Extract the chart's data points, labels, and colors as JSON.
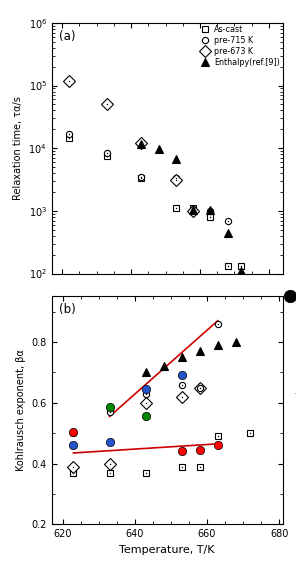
{
  "panel_a": {
    "ascast_T": [
      622,
      633,
      643,
      653,
      658,
      663,
      668,
      672
    ],
    "ascast_tau": [
      14500.0,
      7500.0,
      3400.0,
      1100.0,
      1100.0,
      800,
      130,
      130
    ],
    "pre715_T": [
      622,
      633,
      643,
      653,
      658,
      663,
      668
    ],
    "pre715_tau": [
      17000.0,
      8500.0,
      3500.0,
      3300.0,
      1000.0,
      1000.0,
      700
    ],
    "pre673_T": [
      622,
      633,
      643,
      653,
      658
    ],
    "pre673_tau": [
      120000.0,
      50000.0,
      12000.0,
      3100.0,
      1000.0
    ],
    "enthalpy_T": [
      643,
      648,
      653,
      658,
      663,
      668,
      672
    ],
    "enthalpy_tau": [
      11500.0,
      9800.0,
      6800.0,
      1050.0,
      1050.0,
      450,
      110
    ]
  },
  "panel_b": {
    "ascast_T": [
      623,
      633,
      643,
      653,
      658,
      663,
      672
    ],
    "ascast_beta": [
      0.37,
      0.37,
      0.37,
      0.39,
      0.39,
      0.49,
      0.5
    ],
    "pre715_T": [
      623,
      633,
      643,
      653,
      658,
      663
    ],
    "pre715_beta": [
      0.5,
      0.57,
      0.63,
      0.66,
      0.65,
      0.86
    ],
    "pre673_T": [
      623,
      633,
      643,
      653,
      658
    ],
    "pre673_beta": [
      0.39,
      0.4,
      0.6,
      0.62,
      0.65
    ],
    "enthalpy_T": [
      643,
      648,
      653,
      658,
      663,
      668
    ],
    "enthalpy_beta": [
      0.7,
      0.72,
      0.75,
      0.77,
      0.79,
      0.8
    ],
    "red_filled_T": [
      623,
      653,
      658,
      663
    ],
    "red_filled_beta": [
      0.505,
      0.44,
      0.445,
      0.46
    ],
    "blue_filled_T": [
      623,
      633,
      643,
      653
    ],
    "blue_filled_beta": [
      0.46,
      0.47,
      0.645,
      0.69
    ],
    "green_filled_T": [
      633,
      643
    ],
    "green_filled_beta": [
      0.585,
      0.555
    ],
    "red_line1_x": [
      623,
      663
    ],
    "red_line1_y": [
      0.435,
      0.465
    ],
    "red_line2_x": [
      633,
      663
    ],
    "red_line2_y": [
      0.555,
      0.87
    ],
    "Tg": 683,
    "Tg_dot_y": 0.95
  },
  "legend": {
    "ascast": "As-cast",
    "pre715": "pre-715 K",
    "pre673": "pre-673 K",
    "enthalpy": "Enthalpy(ref.[9])"
  },
  "xlim": [
    617,
    684
  ],
  "xlim_b": [
    617,
    681
  ],
  "xticks": [
    620,
    640,
    660,
    680
  ],
  "xlabel": "Temperature, T/K",
  "ylabel_a": "Relaxation time, τα/s",
  "ylabel_b": "Kohlrausch exponent, βα",
  "ylim_a_log": [
    100.0,
    1000000.0
  ],
  "ylim_b": [
    0.2,
    0.95
  ],
  "colors": {
    "red_line": "#cc0000",
    "filled_ascast": "#ff0000",
    "filled_pre715": "#2255cc",
    "filled_pre673": "#008800"
  }
}
